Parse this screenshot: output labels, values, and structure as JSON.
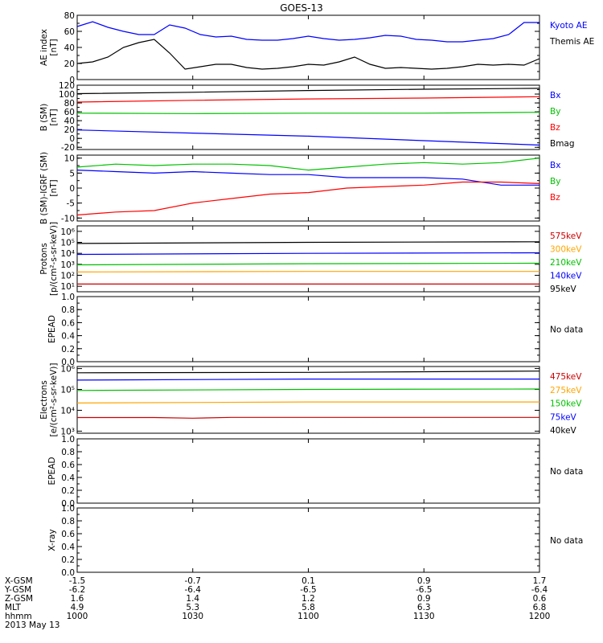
{
  "title": "GOES-13",
  "x_axis": {
    "rows": [
      {
        "label": "X-GSM",
        "values": [
          "-1.5",
          "-0.7",
          "0.1",
          "0.9",
          "1.7"
        ]
      },
      {
        "label": "Y-GSM",
        "values": [
          "-6.2",
          "-6.4",
          "-6.5",
          "-6.5",
          "-6.4"
        ]
      },
      {
        "label": "Z-GSM",
        "values": [
          "1.6",
          "1.4",
          "1.2",
          "0.9",
          "0.6"
        ]
      },
      {
        "label": "MLT",
        "values": [
          "4.9",
          "5.3",
          "5.8",
          "6.3",
          "6.8"
        ]
      },
      {
        "label": "hhmm",
        "values": [
          "1000",
          "1030",
          "1100",
          "1130",
          "1200"
        ]
      }
    ],
    "date": "2013 May 13",
    "t_range_min": [
      0,
      120
    ]
  },
  "chart_data": [
    {
      "id": "ae",
      "type": "line",
      "ylabel": "AE index [nT]",
      "ylim": [
        0,
        80
      ],
      "yticks": [
        "0",
        "20",
        "40",
        "60",
        "80"
      ],
      "legend": [
        {
          "text": "Kyoto AE",
          "color": "#0000ff"
        },
        {
          "text": "Themis AE",
          "color": "#000000"
        }
      ],
      "series": [
        {
          "name": "Kyoto AE",
          "color": "#0000ff",
          "t": [
            0,
            4,
            8,
            12,
            16,
            20,
            24,
            28,
            32,
            36,
            40,
            44,
            48,
            52,
            56,
            60,
            64,
            68,
            72,
            76,
            80,
            84,
            88,
            92,
            96,
            100,
            104,
            108,
            112,
            116,
            120
          ],
          "y": [
            66,
            72,
            65,
            60,
            56,
            56,
            68,
            64,
            56,
            53,
            54,
            50,
            49,
            49,
            51,
            54,
            51,
            49,
            50,
            52,
            55,
            54,
            50,
            49,
            47,
            47,
            49,
            51,
            56,
            71,
            71
          ]
        },
        {
          "name": "Themis AE",
          "color": "#000000",
          "t": [
            0,
            4,
            8,
            12,
            16,
            20,
            24,
            28,
            32,
            36,
            40,
            44,
            48,
            52,
            56,
            60,
            64,
            68,
            72,
            76,
            80,
            84,
            88,
            92,
            96,
            100,
            104,
            108,
            112,
            116,
            120
          ],
          "y": [
            20,
            22,
            28,
            40,
            46,
            50,
            33,
            13,
            16,
            19,
            19,
            15,
            13,
            14,
            16,
            19,
            18,
            22,
            28,
            19,
            14,
            15,
            14,
            13,
            14,
            16,
            19,
            18,
            19,
            18,
            26
          ]
        }
      ]
    },
    {
      "id": "bsm",
      "type": "line",
      "ylabel": "B (SM) [nT]",
      "ylim": [
        -25,
        120
      ],
      "yticks": [
        "-20",
        "0",
        "20",
        "40",
        "60",
        "80",
        "100",
        "120"
      ],
      "yticks_vals": [
        -20,
        0,
        20,
        40,
        60,
        80,
        100,
        120
      ],
      "legend": [
        {
          "text": "Bx",
          "color": "#0000ff"
        },
        {
          "text": "By",
          "color": "#00c000"
        },
        {
          "text": "Bz",
          "color": "#ff0000"
        },
        {
          "text": "Bmag",
          "color": "#000000"
        }
      ],
      "series": [
        {
          "name": "Bx",
          "color": "#0000ff",
          "t": [
            0,
            30,
            60,
            90,
            120
          ],
          "y": [
            19,
            12,
            5,
            -5,
            -15
          ]
        },
        {
          "name": "By",
          "color": "#00c000",
          "t": [
            0,
            30,
            60,
            90,
            120
          ],
          "y": [
            57,
            56,
            57,
            57,
            59
          ]
        },
        {
          "name": "Bz",
          "color": "#ff0000",
          "t": [
            0,
            30,
            60,
            90,
            120
          ],
          "y": [
            82,
            86,
            89,
            91,
            94
          ]
        },
        {
          "name": "Bmag",
          "color": "#000000",
          "t": [
            0,
            30,
            60,
            90,
            120
          ],
          "y": [
            101,
            104,
            108,
            111,
            113
          ]
        }
      ]
    },
    {
      "id": "bigrf",
      "type": "line",
      "ylabel": "B (SM)-IGRF (SM) [nT]",
      "ylim": [
        -11,
        11
      ],
      "yticks": [
        "-10",
        "-5",
        "0",
        "5",
        "10"
      ],
      "yticks_vals": [
        -10,
        -5,
        0,
        5,
        10
      ],
      "legend": [
        {
          "text": "Bx",
          "color": "#0000ff"
        },
        {
          "text": "By",
          "color": "#00c000"
        },
        {
          "text": "Bz",
          "color": "#ff0000"
        }
      ],
      "series": [
        {
          "name": "Bx",
          "color": "#0000ff",
          "t": [
            0,
            10,
            20,
            30,
            40,
            50,
            60,
            70,
            80,
            90,
            100,
            110,
            120
          ],
          "y": [
            6,
            5.5,
            5,
            5.5,
            5,
            4.5,
            4.5,
            3.5,
            3.5,
            3.5,
            3,
            1,
            1
          ]
        },
        {
          "name": "By",
          "color": "#00c000",
          "t": [
            0,
            10,
            20,
            30,
            40,
            50,
            60,
            70,
            80,
            90,
            100,
            110,
            120
          ],
          "y": [
            7,
            8,
            7.5,
            8,
            8,
            7.5,
            6,
            7,
            8,
            8.5,
            8,
            8.5,
            10
          ]
        },
        {
          "name": "Bz",
          "color": "#ff0000",
          "t": [
            0,
            10,
            20,
            30,
            40,
            50,
            60,
            70,
            80,
            90,
            100,
            110,
            120
          ],
          "y": [
            -9,
            -8,
            -7.5,
            -5,
            -3.5,
            -2,
            -1.5,
            0,
            0.5,
            1,
            2,
            2,
            1.5
          ]
        }
      ]
    },
    {
      "id": "protons",
      "type": "line",
      "ylabel": "Protons [p/(cm²-s-sr-keV)]",
      "yscale": "log",
      "ylim_log": [
        0.5,
        6.5
      ],
      "yticks": [
        "10¹",
        "10²",
        "10³",
        "10⁴",
        "10⁵",
        "10⁶"
      ],
      "yticks_vals": [
        1,
        2,
        3,
        4,
        5,
        6
      ],
      "legend": [
        {
          "text": "575keV",
          "color": "#cc0000"
        },
        {
          "text": "300keV",
          "color": "#ffa500"
        },
        {
          "text": "210keV",
          "color": "#00c000"
        },
        {
          "text": "140keV",
          "color": "#0000ff"
        },
        {
          "text": "95keV",
          "color": "#000000"
        }
      ],
      "series": [
        {
          "name": "575keV",
          "color": "#cc0000",
          "t": [
            0,
            60,
            120
          ],
          "y": [
            1.2,
            1.2,
            1.2
          ]
        },
        {
          "name": "300keV",
          "color": "#ffa500",
          "t": [
            0,
            60,
            120
          ],
          "y": [
            2.3,
            2.35,
            2.35
          ]
        },
        {
          "name": "210keV",
          "color": "#00c000",
          "t": [
            0,
            60,
            120
          ],
          "y": [
            2.95,
            3.05,
            3.1
          ]
        },
        {
          "name": "140keV",
          "color": "#0000ff",
          "t": [
            0,
            60,
            120
          ],
          "y": [
            3.9,
            4.0,
            4.05
          ]
        },
        {
          "name": "95keV",
          "color": "#000000",
          "t": [
            0,
            60,
            120
          ],
          "y": [
            4.9,
            5.0,
            5.05
          ]
        }
      ]
    },
    {
      "id": "epead1",
      "type": "line",
      "ylabel": "EPEAD",
      "ylim": [
        0,
        1
      ],
      "yticks": [
        "0.0",
        "0.2",
        "0.4",
        "0.6",
        "0.8",
        "1.0"
      ],
      "yticks_vals": [
        0,
        0.2,
        0.4,
        0.6,
        0.8,
        1.0
      ],
      "legend": [
        {
          "text": "No data",
          "color": "#000000"
        }
      ],
      "series": []
    },
    {
      "id": "electrons",
      "type": "line",
      "ylabel": "Electrons [e/(cm²-s-sr-keV)]",
      "yscale": "log",
      "ylim_log": [
        2.9,
        6.1
      ],
      "yticks": [
        "10³",
        "10⁴",
        "10⁵",
        "10⁶"
      ],
      "yticks_vals": [
        3,
        4,
        5,
        6
      ],
      "legend": [
        {
          "text": "475keV",
          "color": "#cc0000"
        },
        {
          "text": "275keV",
          "color": "#ffa500"
        },
        {
          "text": "150keV",
          "color": "#00c000"
        },
        {
          "text": "75keV",
          "color": "#0000ff"
        },
        {
          "text": "40keV",
          "color": "#000000"
        }
      ],
      "series": [
        {
          "name": "475keV",
          "color": "#cc0000",
          "t": [
            0,
            20,
            30,
            40,
            60,
            120
          ],
          "y": [
            3.65,
            3.65,
            3.62,
            3.66,
            3.66,
            3.66
          ]
        },
        {
          "name": "275keV",
          "color": "#ffa500",
          "t": [
            0,
            60,
            120
          ],
          "y": [
            4.35,
            4.4,
            4.4
          ]
        },
        {
          "name": "150keV",
          "color": "#00c000",
          "t": [
            0,
            60,
            120
          ],
          "y": [
            4.95,
            5.0,
            5.02
          ]
        },
        {
          "name": "75keV",
          "color": "#0000ff",
          "t": [
            0,
            60,
            120
          ],
          "y": [
            5.45,
            5.5,
            5.5
          ]
        },
        {
          "name": "40keV",
          "color": "#000000",
          "t": [
            0,
            60,
            120
          ],
          "y": [
            5.8,
            5.82,
            5.88
          ]
        }
      ]
    },
    {
      "id": "epead2",
      "type": "line",
      "ylabel": "EPEAD",
      "ylim": [
        0,
        1
      ],
      "yticks": [
        "0.0",
        "0.2",
        "0.4",
        "0.6",
        "0.8",
        "1.0"
      ],
      "yticks_vals": [
        0,
        0.2,
        0.4,
        0.6,
        0.8,
        1.0
      ],
      "legend": [
        {
          "text": "No data",
          "color": "#000000"
        }
      ],
      "series": []
    },
    {
      "id": "xray",
      "type": "line",
      "ylabel": "X-ray",
      "ylim": [
        0,
        1
      ],
      "yticks": [
        "0.0",
        "0.2",
        "0.4",
        "0.6",
        "0.8",
        "1.0"
      ],
      "yticks_vals": [
        0,
        0.2,
        0.4,
        0.6,
        0.8,
        1.0
      ],
      "legend": [
        {
          "text": "No data",
          "color": "#000000"
        }
      ],
      "series": []
    }
  ]
}
